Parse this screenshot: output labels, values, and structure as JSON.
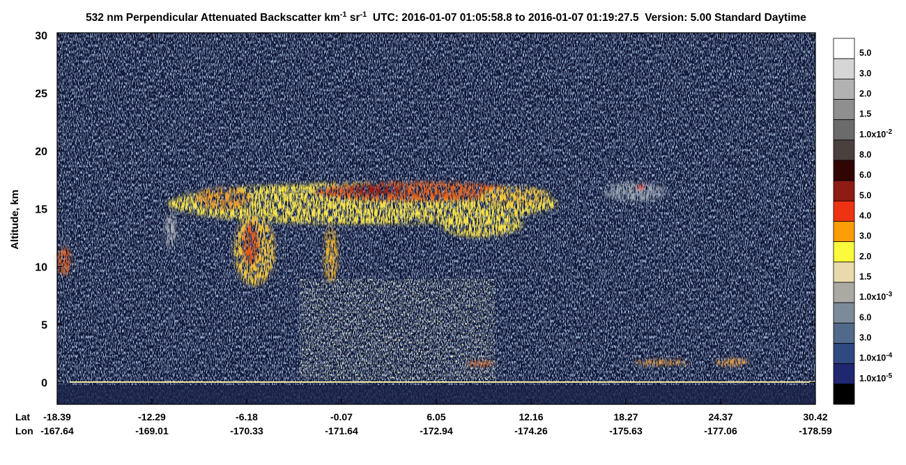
{
  "chart_data": {
    "type": "heatmap",
    "title": [
      {
        "text": "532 nm Perpendicular Attenuated Backscatter km"
      },
      {
        "text": "-1",
        "sup": true
      },
      {
        "text": " sr"
      },
      {
        "text": "-1",
        "sup": true
      },
      {
        "text": "  UTC: 2016-01-07 01:05:58.8 to 2016-01-07 01:19:27.5  Version: 5.00 Standard Daytime"
      }
    ],
    "y_label": "Altitude, km",
    "ylim": [
      -1.9,
      30.2
    ],
    "yticks": [
      0,
      5,
      10,
      15,
      20,
      25,
      30
    ],
    "x_row_labels": [
      "Lat",
      "Lon"
    ],
    "lat": [
      -18.39,
      -12.29,
      -6.18,
      -0.07,
      6.05,
      12.16,
      18.27,
      24.37,
      30.42
    ],
    "lon": [
      -167.64,
      -169.01,
      -170.33,
      -171.64,
      -172.94,
      -174.26,
      -175.63,
      -177.06,
      -178.59
    ],
    "colorbar": {
      "colors": [
        "#ffffff",
        "#d6d6d6",
        "#b2b2b2",
        "#8f8f8f",
        "#6b6b6b",
        "#4a403d",
        "#320505",
        "#8e1a14",
        "#ee3312",
        "#fb9d05",
        "#fbfb3c",
        "#ead9aa",
        "#aaaaa2",
        "#7b8b99",
        "#51698a",
        "#2f4a80",
        "#202771",
        "#000000"
      ],
      "labels": [
        {
          "text": "5.0"
        },
        {
          "text": "3.0"
        },
        {
          "text": "2.0"
        },
        {
          "text": "1.5"
        },
        {
          "text": "1.0x10",
          "sup": "-2"
        },
        {
          "text": "8.0"
        },
        {
          "text": "6.0"
        },
        {
          "text": "5.0"
        },
        {
          "text": "4.0"
        },
        {
          "text": "3.0"
        },
        {
          "text": "2.0"
        },
        {
          "text": "1.5"
        },
        {
          "text": "1.0x10",
          "sup": "-3"
        },
        {
          "text": "6.0"
        },
        {
          "text": "3.0"
        },
        {
          "text": "1.0x10",
          "sup": "-4"
        },
        {
          "text": "1.0x10",
          "sup": "-5"
        }
      ]
    }
  }
}
